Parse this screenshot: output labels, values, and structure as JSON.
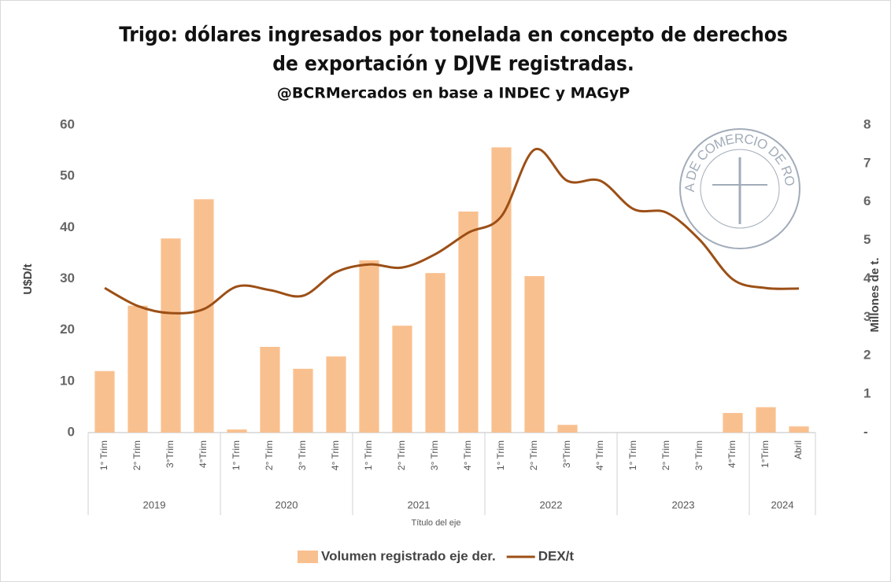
{
  "chart_data": {
    "type": "bar_line",
    "title": [
      "Trigo: dólares ingresados por tonelada en concepto de derechos",
      "de exportación y DJVE registradas."
    ],
    "subtitle": "@BCRMercados en base a INDEC y MAGyP",
    "watermark": "BOLSA DE COMERCIO DE ROSARIO",
    "x_axis_label": "Título del eje",
    "y_axis_label": "U$D/t",
    "y2_axis_label": "Millones de t.",
    "groups": [
      {
        "name": "2019",
        "categories": [
          "1° Trim",
          "2° Trim",
          "3°Trim",
          "4°Trim"
        ]
      },
      {
        "name": "2020",
        "categories": [
          "1° Trim",
          "2° Trim",
          "3° Trim",
          "4° Trim"
        ]
      },
      {
        "name": "2021",
        "categories": [
          "1° Trim",
          "2° Trim",
          "3° Trim",
          "4° Trim"
        ]
      },
      {
        "name": "2022",
        "categories": [
          "1° Trim",
          "2° Trim",
          "3°Trim",
          "4° Trim"
        ]
      },
      {
        "name": "2023",
        "categories": [
          "1° Trim",
          "2° Trim",
          "3° Trim",
          "4°Trim"
        ]
      },
      {
        "name": "2024",
        "categories": [
          "1°Trim",
          "Abril"
        ]
      }
    ],
    "series": [
      {
        "name": "Volumen registrado eje der.",
        "type": "bar",
        "axis": "y2",
        "color": "#f9c08f",
        "values": [
          1.6,
          3.3,
          5.05,
          6.07,
          0.08,
          2.23,
          1.66,
          1.98,
          4.48,
          2.78,
          4.15,
          5.75,
          7.42,
          4.07,
          0.2,
          0,
          0,
          0,
          0,
          0.51,
          0.66,
          0.16
        ]
      },
      {
        "name": "DEX/t",
        "type": "line",
        "axis": "y",
        "color": "#9c4f16",
        "values": [
          28.2,
          24.7,
          23.3,
          24.1,
          28.5,
          27.8,
          26.7,
          31.3,
          32.8,
          32.2,
          34.8,
          39.0,
          42.2,
          55.2,
          49.1,
          49.1,
          43.6,
          42.9,
          37.6,
          29.9,
          28.2,
          28.1
        ]
      }
    ],
    "ylim": [
      0,
      60
    ],
    "yticks": [
      0,
      10,
      20,
      30,
      40,
      50,
      60
    ],
    "y2lim": [
      0,
      8
    ],
    "y2ticks": [
      {
        "value": 0,
        "label": "-"
      },
      1,
      2,
      3,
      4,
      5,
      6,
      7,
      8
    ],
    "legend": "bottom"
  }
}
